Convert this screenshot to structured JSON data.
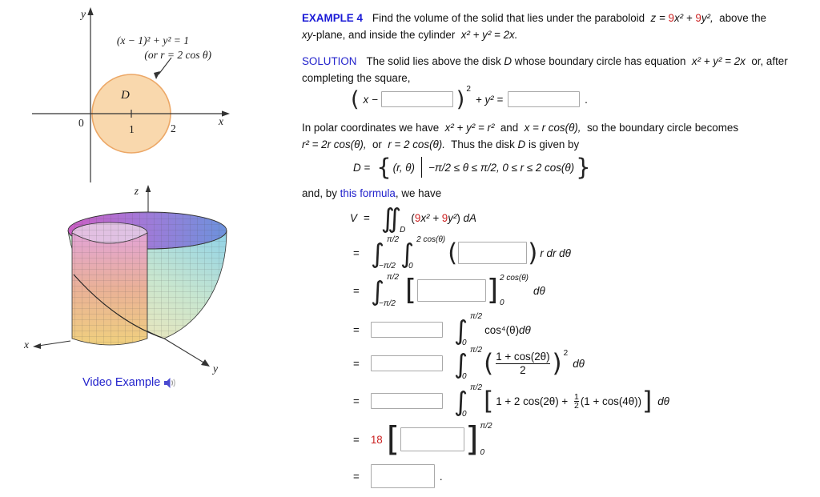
{
  "colors": {
    "accent_blue": "#2323cc",
    "accent_red": "#cc2222",
    "circle_fill": "#f9d8ad",
    "circle_stroke": "#eca766"
  },
  "fig2d": {
    "y_label": "y",
    "x_label": "x",
    "origin_label": "0",
    "tick1_label": "1",
    "tick2_label": "2",
    "equation_label": "(x − 1)² + y² = 1",
    "polar_label": "(or r = 2 cos θ)",
    "region_label": "D"
  },
  "fig3d": {
    "z_label": "z",
    "x_label": "x",
    "y_label": "y"
  },
  "video": {
    "label": "Video Example"
  },
  "p1a": [
    {
      "t": "EXAMPLE 4",
      "s": "hb"
    },
    {
      "t": "Find the volume of the solid that lies under the paraboloid  ",
      "s": ""
    },
    {
      "t": "z = ",
      "s": "m"
    },
    {
      "t": "9",
      "s": "r"
    },
    {
      "t": "x² + ",
      "s": "m"
    },
    {
      "t": "9",
      "s": "r"
    },
    {
      "t": "y²,",
      "s": "m"
    },
    {
      "t": "  above the",
      "s": ""
    }
  ],
  "p1b": [
    {
      "t": "xy",
      "s": "m"
    },
    {
      "t": "-plane, and inside the cylinder  ",
      "s": ""
    },
    {
      "t": "x² + y² = 2x.",
      "s": "m"
    }
  ],
  "p2a": [
    {
      "t": "SOLUTION",
      "s": "h"
    },
    {
      "t": "The solid lies above the disk ",
      "s": ""
    },
    {
      "t": "D",
      "s": "m"
    },
    {
      "t": " whose boundary circle has equation  ",
      "s": ""
    },
    {
      "t": "x² + y² = 2x",
      "s": "m"
    },
    {
      "t": "  or, after",
      "s": ""
    }
  ],
  "p2b": [
    {
      "t": "completing the square,",
      "s": ""
    }
  ],
  "p3a": [
    {
      "t": "In polar coordinates we have  ",
      "s": ""
    },
    {
      "t": "x² + y² = r²",
      "s": "m"
    },
    {
      "t": "  and  ",
      "s": ""
    },
    {
      "t": "x = r cos(θ),",
      "s": "m"
    },
    {
      "t": "  so the boundary circle becomes",
      "s": ""
    }
  ],
  "p3b": [
    {
      "t": "r² = 2r cos(θ),",
      "s": "m"
    },
    {
      "t": "  or  ",
      "s": ""
    },
    {
      "t": "r = 2 cos(θ).",
      "s": "m"
    },
    {
      "t": "  Thus the disk ",
      "s": ""
    },
    {
      "t": "D",
      "s": "m"
    },
    {
      "t": " is given by",
      "s": ""
    }
  ],
  "p4": [
    {
      "t": "and, by ",
      "s": ""
    },
    {
      "t": "this formula",
      "s": "link"
    },
    {
      "t": ", we have",
      "s": ""
    }
  ],
  "eqA": {
    "lead": "x −",
    "sup": "2",
    "mid": "+ y² =",
    "end": "."
  },
  "eqD": {
    "lhs": "D =",
    "pair": "(r, θ)",
    "cond": "−π/2 ≤ θ ≤ π/2, 0 ≤ r ≤ 2 cos(θ)"
  },
  "rowV": {
    "lhs": "V",
    "eq": "=",
    "dsub": "D",
    "integrand": [
      {
        "t": "(",
        "s": ""
      },
      {
        "t": "9",
        "s": "r"
      },
      {
        "t": "x² + ",
        "s": "m"
      },
      {
        "t": "9",
        "s": "r"
      },
      {
        "t": "y²",
        "s": "m"
      },
      {
        "t": ") ",
        "s": ""
      },
      {
        "t": "dA",
        "s": "m"
      }
    ]
  },
  "r2": {
    "eq": "=",
    "up1": "π/2",
    "lo1": "−π/2",
    "up2": "2 cos(θ)",
    "lo2": "0",
    "tail": "r dr dθ"
  },
  "r3": {
    "eq": "=",
    "up1": "π/2",
    "lo1": "−π/2",
    "limup": "2 cos(θ)",
    "limlo": "0",
    "tail": "dθ"
  },
  "r4": {
    "eq": "=",
    "up": "π/2",
    "lo": "0",
    "tail1": "cos⁴(θ) ",
    "tail2": "dθ"
  },
  "r5": {
    "eq": "=",
    "up": "π/2",
    "lo": "0",
    "num": "1 + cos(2θ)",
    "den": "2",
    "sup": "2",
    "tail": "dθ"
  },
  "r6": {
    "eq": "=",
    "up": "π/2",
    "lo": "0",
    "pre": "1 + 2 cos(2θ) + ",
    "fnum": "1",
    "fden": "2",
    "post": "(1 + cos(4θ))",
    "tail": "dθ"
  },
  "r7": {
    "eq": "=",
    "coef": "18",
    "limup": "π/2",
    "limlo": "0"
  },
  "r8": {
    "eq": "=",
    "end": "."
  },
  "sym": {
    "integral": "∫",
    "lparen": "(",
    "rparen": ")",
    "lbracket": "[",
    "rbracket": "]",
    "lbrace": "{",
    "rbrace": "}"
  },
  "inputs": {
    "center": "",
    "radius": "",
    "integrand": "",
    "antider_r": "",
    "coef1": "",
    "coef2": "",
    "coef3": "",
    "antider_theta": "",
    "final": ""
  }
}
